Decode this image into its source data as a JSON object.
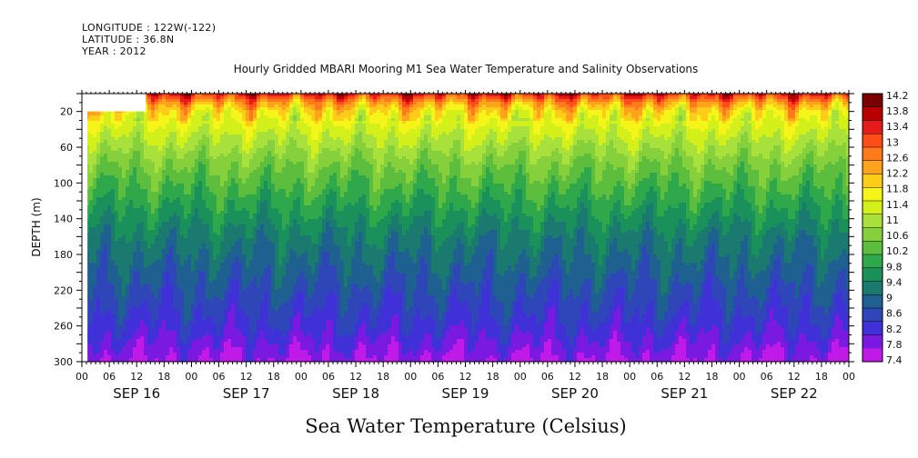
{
  "header": {
    "longitude": "LONGITUDE : 122W(-122)",
    "latitude": "LATITUDE : 36.8N",
    "year": "YEAR : 2012"
  },
  "chart_data": {
    "type": "heatmap",
    "title": "Hourly Gridded MBARI Mooring M1 Sea Water Temperature and Salinity Observations",
    "xlabel_bottom": "Sea Water Temperature (Celsius)",
    "ylabel": "DEPTH (m)",
    "x_range_hours": [
      0,
      168
    ],
    "ylim": [
      300,
      0
    ],
    "y_ticks": [
      20,
      60,
      100,
      140,
      180,
      220,
      260,
      300
    ],
    "x_hour_tick_labels": [
      "00",
      "06",
      "12",
      "18",
      "00",
      "06",
      "12",
      "18",
      "00",
      "06",
      "12",
      "18",
      "00",
      "06",
      "12",
      "18",
      "00",
      "06",
      "12",
      "18",
      "00",
      "06",
      "12",
      "18",
      "00",
      "06",
      "12",
      "18",
      "00"
    ],
    "day_labels": [
      "SEP 16",
      "SEP 17",
      "SEP 18",
      "SEP 19",
      "SEP 20",
      "SEP 21",
      "SEP 22"
    ],
    "colorbar": {
      "levels": [
        14.2,
        13.8,
        13.4,
        13,
        12.6,
        12.2,
        11.8,
        11.4,
        11,
        10.6,
        10.2,
        9.8,
        9.4,
        9,
        8.6,
        8.2,
        7.8,
        7.4
      ],
      "colors": [
        "#7a0000",
        "#b80000",
        "#e61a1a",
        "#ff4d1a",
        "#ff7a1a",
        "#ffa31a",
        "#ffcc1a",
        "#f5f51a",
        "#d4f01a",
        "#a8e03c",
        "#86d03c",
        "#5cbe3c",
        "#2ea84a",
        "#1a905a",
        "#1a7a70",
        "#1e6090",
        "#2e46b8",
        "#4030d8",
        "#7a1ae0",
        "#c01ae8"
      ],
      "vmin": 7.4,
      "vmax": 14.2
    },
    "data_start_hours": 6,
    "data_start_depth_m": 20,
    "depth_profile": [
      {
        "depth": 0,
        "temp": 13.4
      },
      {
        "depth": 10,
        "temp": 12.4
      },
      {
        "depth": 20,
        "temp": 11.8
      },
      {
        "depth": 40,
        "temp": 11.3
      },
      {
        "depth": 60,
        "temp": 10.9
      },
      {
        "depth": 80,
        "temp": 10.5
      },
      {
        "depth": 100,
        "temp": 10.2
      },
      {
        "depth": 120,
        "temp": 9.9
      },
      {
        "depth": 140,
        "temp": 9.6
      },
      {
        "depth": 160,
        "temp": 9.3
      },
      {
        "depth": 180,
        "temp": 9.1
      },
      {
        "depth": 200,
        "temp": 8.9
      },
      {
        "depth": 220,
        "temp": 8.7
      },
      {
        "depth": 240,
        "temp": 8.5
      },
      {
        "depth": 260,
        "temp": 8.3
      },
      {
        "depth": 280,
        "temp": 8.0
      },
      {
        "depth": 300,
        "temp": 7.7
      }
    ]
  }
}
